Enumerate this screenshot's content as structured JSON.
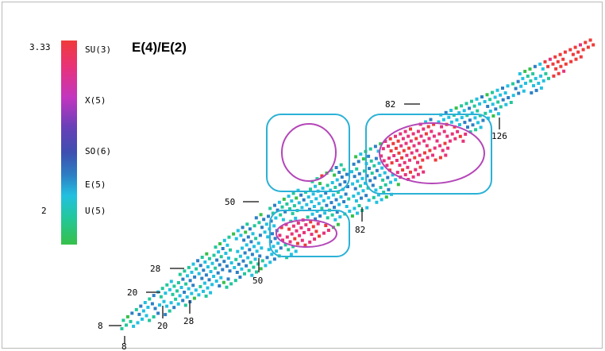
{
  "title": "E(4)/E(2)",
  "colorbar": {
    "max_label": "3.33",
    "min_label": "2",
    "symmetry_labels": [
      "SU(3)",
      "X(5)",
      "SO(6)",
      "E(5)",
      "U(5)"
    ],
    "gradient_colors": [
      "#ef3a3a",
      "#e8327a",
      "#c236c0",
      "#6a3fb8",
      "#3d4fb0",
      "#2d7fc4",
      "#22c0e0",
      "#22c79a",
      "#36c04a"
    ]
  },
  "magic_numbers": {
    "proton": [
      "8",
      "20",
      "28",
      "50",
      "82"
    ],
    "neutron": [
      "8",
      "20",
      "28",
      "50",
      "82",
      "126"
    ]
  },
  "colors": {
    "shell_box": "#2bb1d6",
    "contour": "#b446b8",
    "magic_line": "#333333"
  }
}
